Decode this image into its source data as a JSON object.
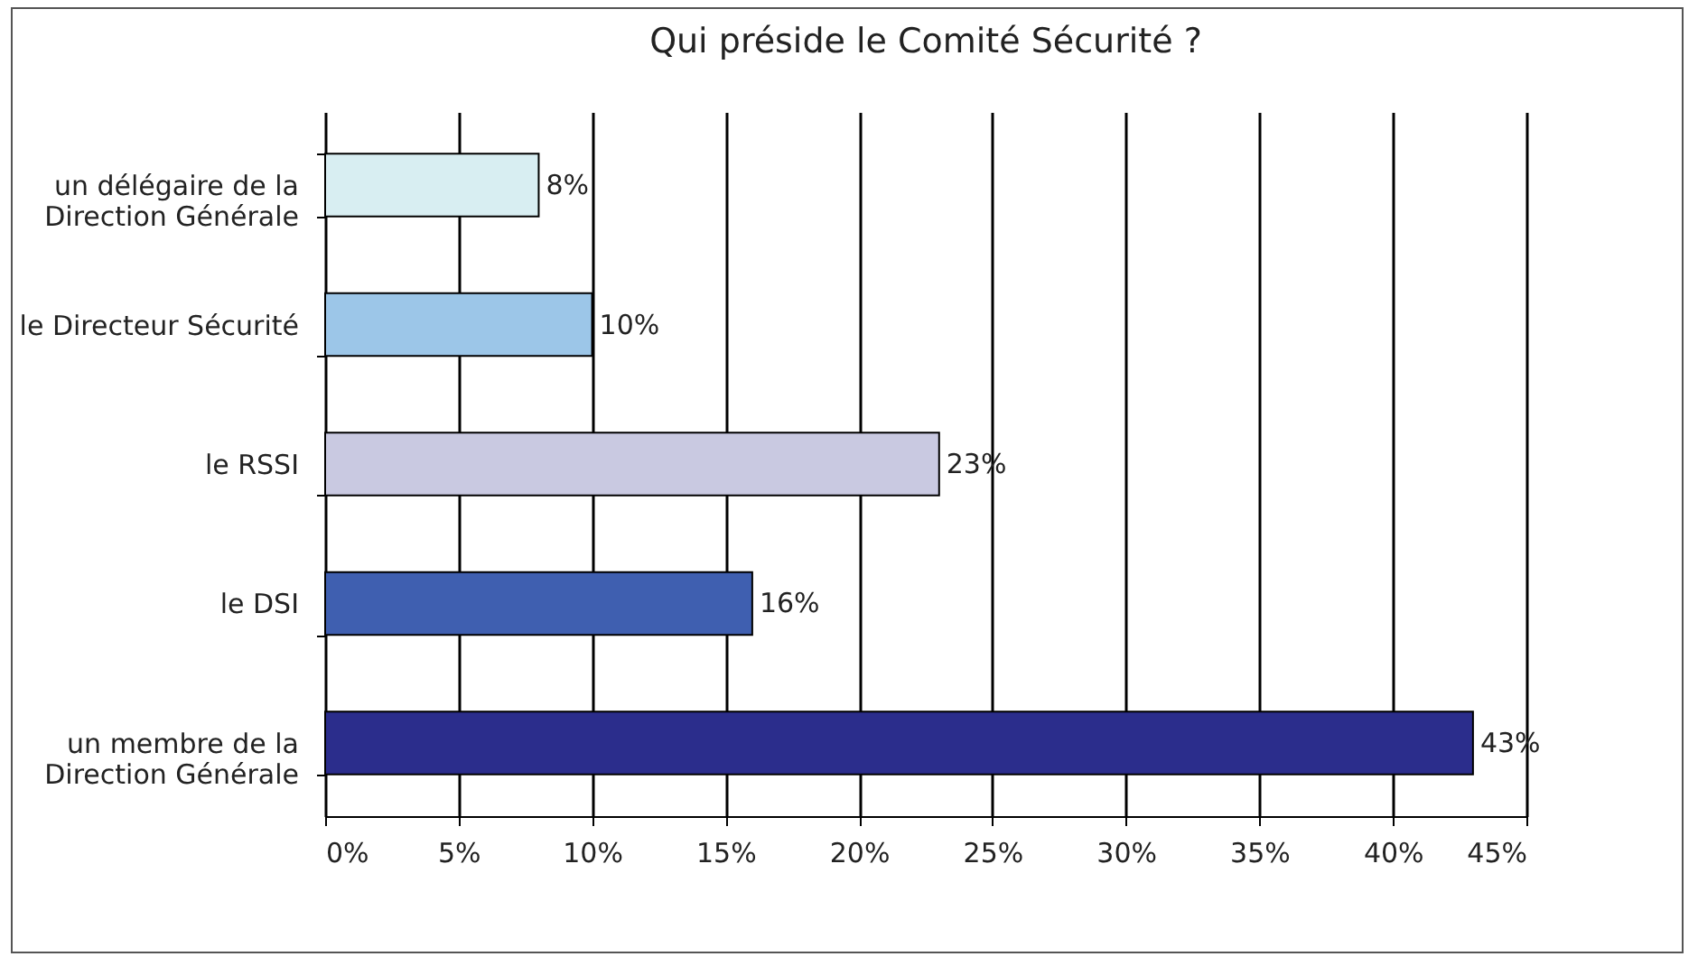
{
  "chart_data": {
    "type": "bar",
    "orientation": "horizontal",
    "title": "Qui préside le Comité Sécurité ?",
    "categories": [
      "un délégaire de la Direction Générale",
      "le Directeur Sécurité",
      "le RSSI",
      "le DSI",
      "un membre de la Direction Générale"
    ],
    "values": [
      8,
      10,
      23,
      16,
      43
    ],
    "value_labels": [
      "8%",
      "10%",
      "23%",
      "16%",
      "43%"
    ],
    "colors": [
      "#d8eef2",
      "#9cc6e8",
      "#c9c9e1",
      "#3f5fb0",
      "#2b2d8c"
    ],
    "xlim": [
      0,
      45
    ],
    "xticks": [
      {
        "value": 0,
        "label": "0%"
      },
      {
        "value": 5,
        "label": "5%"
      },
      {
        "value": 10,
        "label": "10%"
      },
      {
        "value": 15,
        "label": "15%"
      },
      {
        "value": 20,
        "label": "20%"
      },
      {
        "value": 25,
        "label": "25%"
      },
      {
        "value": 30,
        "label": "30%"
      },
      {
        "value": 35,
        "label": "35%"
      },
      {
        "value": 40,
        "label": "40%"
      },
      {
        "value": 45,
        "label": "45%"
      }
    ],
    "grid": "x"
  }
}
